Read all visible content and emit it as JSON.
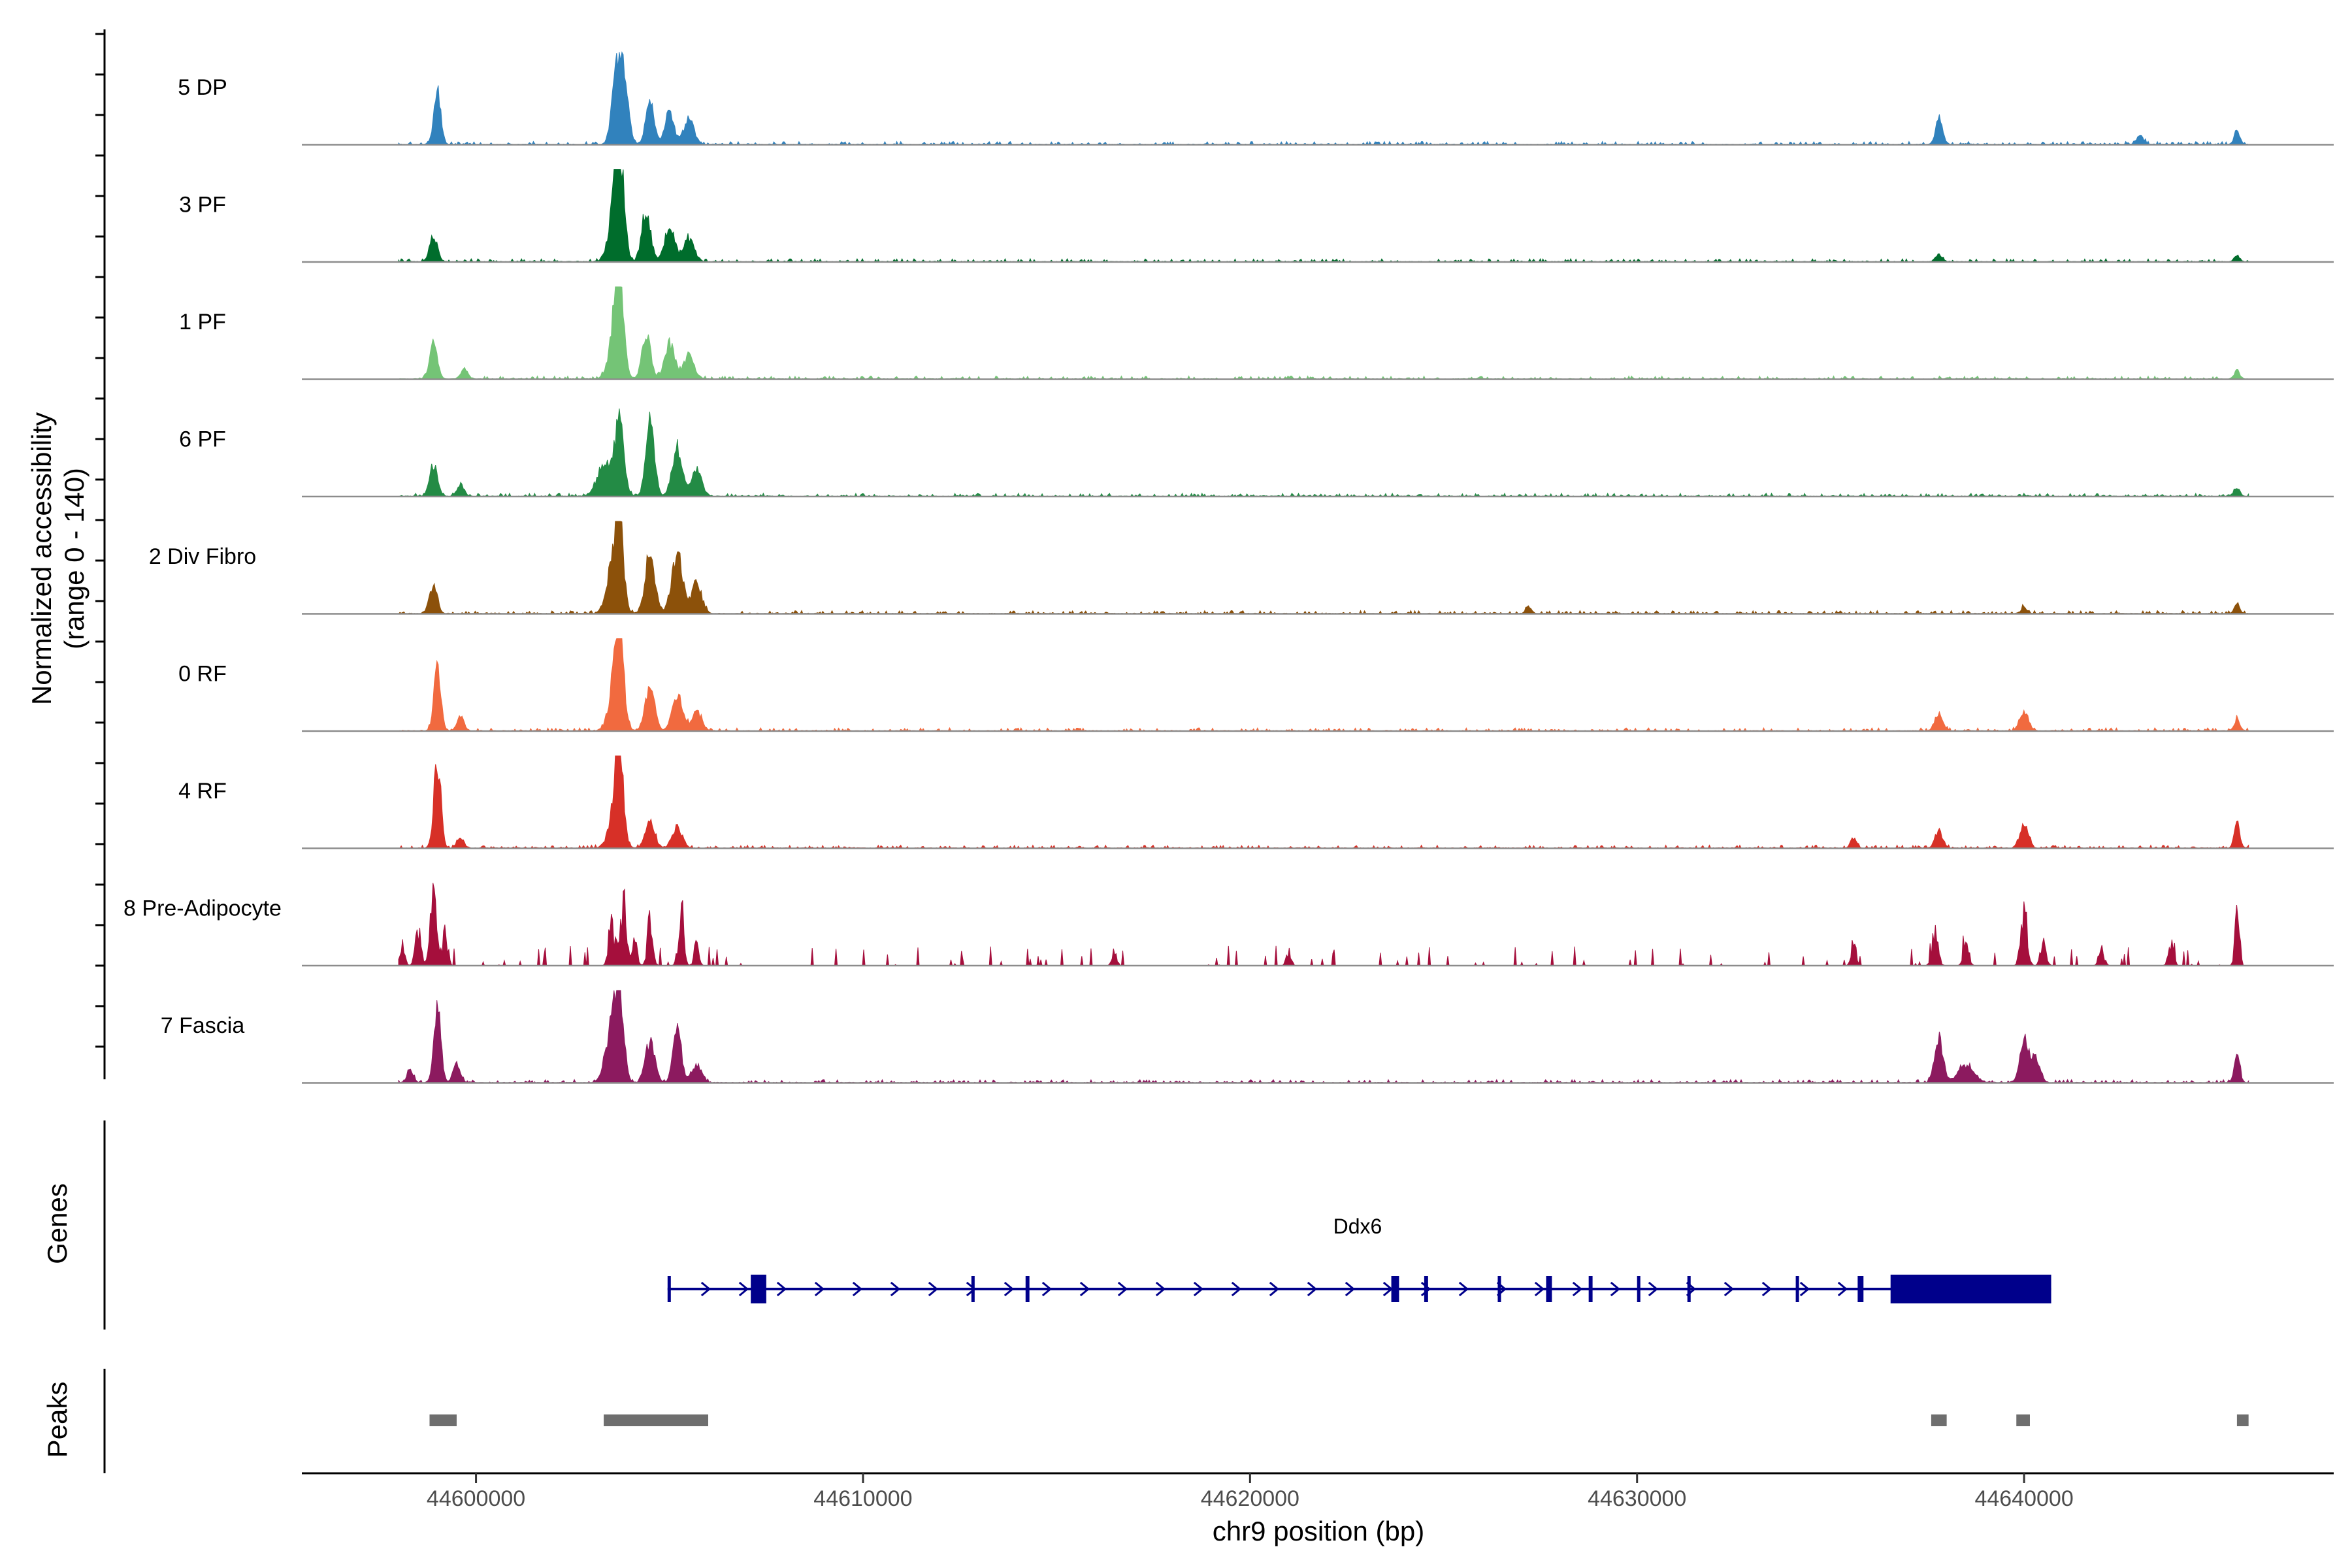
{
  "chart_data": {
    "type": "area",
    "title": "",
    "ylabel": "Normalized accessibility",
    "ylabel_sub": "(range 0 - 140)",
    "yrange": [
      0,
      140
    ],
    "xlabel": "chr9 position (bp)",
    "xlim": [
      44595500,
      44648000
    ],
    "x_ticks": [
      44600000,
      44610000,
      44620000,
      44630000,
      44640000
    ],
    "x_tick_labels": [
      "44600000",
      "44610000",
      "44620000",
      "44630000",
      "44640000"
    ],
    "series": [
      {
        "name": "5 DP",
        "color": "#3182bd",
        "peaks": [
          [
            44599000,
            0.6,
            90
          ],
          [
            44603600,
            0.6,
            110
          ],
          [
            44603800,
            0.92,
            120
          ],
          [
            44604500,
            0.48,
            110
          ],
          [
            44605000,
            0.38,
            110
          ],
          [
            44605500,
            0.3,
            130
          ],
          [
            44637800,
            0.3,
            90
          ],
          [
            44643000,
            0.1,
            90
          ],
          [
            44645500,
            0.16,
            70
          ]
        ]
      },
      {
        "name": "3 PF",
        "color": "#006d2c",
        "peaks": [
          [
            44598900,
            0.3,
            100
          ],
          [
            44603700,
            1.0,
            110
          ],
          [
            44603600,
            0.6,
            160
          ],
          [
            44604400,
            0.62,
            110
          ],
          [
            44605000,
            0.4,
            130
          ],
          [
            44605500,
            0.26,
            140
          ],
          [
            44637800,
            0.08,
            90
          ],
          [
            44645500,
            0.08,
            70
          ]
        ]
      },
      {
        "name": "1 PF",
        "color": "#74c476",
        "peaks": [
          [
            44598900,
            0.4,
            100
          ],
          [
            44599700,
            0.12,
            90
          ],
          [
            44603700,
            0.95,
            110
          ],
          [
            44603600,
            0.5,
            160
          ],
          [
            44604400,
            0.52,
            110
          ],
          [
            44605000,
            0.4,
            130
          ],
          [
            44605500,
            0.26,
            140
          ],
          [
            44645500,
            0.1,
            70
          ]
        ]
      },
      {
        "name": "6 PF",
        "color": "#238b45",
        "peaks": [
          [
            44598900,
            0.38,
            100
          ],
          [
            44599600,
            0.14,
            90
          ],
          [
            44603700,
            0.85,
            120
          ],
          [
            44603300,
            0.35,
            180
          ],
          [
            44604500,
            0.85,
            110
          ],
          [
            44605200,
            0.58,
            130
          ],
          [
            44605700,
            0.3,
            130
          ],
          [
            44645500,
            0.1,
            70
          ]
        ]
      },
      {
        "name": "2 Div Fibro",
        "color": "#8c510a",
        "peaks": [
          [
            44598900,
            0.32,
            100
          ],
          [
            44603700,
            1.0,
            110
          ],
          [
            44603500,
            0.5,
            140
          ],
          [
            44604500,
            0.68,
            130
          ],
          [
            44605200,
            0.68,
            140
          ],
          [
            44605700,
            0.34,
            130
          ],
          [
            44627200,
            0.08,
            70
          ],
          [
            44640000,
            0.08,
            70
          ],
          [
            44645500,
            0.1,
            70
          ]
        ]
      },
      {
        "name": "0 RF",
        "color": "#f16a3f",
        "peaks": [
          [
            44599000,
            0.7,
            90
          ],
          [
            44599600,
            0.16,
            90
          ],
          [
            44603700,
            0.92,
            110
          ],
          [
            44603600,
            0.5,
            160
          ],
          [
            44604500,
            0.55,
            120
          ],
          [
            44605200,
            0.42,
            130
          ],
          [
            44605700,
            0.22,
            130
          ],
          [
            44637800,
            0.2,
            100
          ],
          [
            44640000,
            0.22,
            110
          ],
          [
            44645500,
            0.14,
            70
          ]
        ]
      },
      {
        "name": "4 RF",
        "color": "#d73027",
        "peaks": [
          [
            44599000,
            1.0,
            90
          ],
          [
            44599600,
            0.12,
            90
          ],
          [
            44603700,
            1.0,
            100
          ],
          [
            44603600,
            0.4,
            160
          ],
          [
            44604500,
            0.3,
            120
          ],
          [
            44605200,
            0.24,
            130
          ],
          [
            44635600,
            0.12,
            80
          ],
          [
            44637800,
            0.2,
            100
          ],
          [
            44640000,
            0.28,
            110
          ],
          [
            44645500,
            0.3,
            70
          ]
        ]
      },
      {
        "name": "8 Pre-Adipocyte",
        "color": "#a50f3c",
        "peaks": [
          [
            44598900,
            0.9,
            80
          ],
          [
            44598500,
            0.5,
            70
          ],
          [
            44599200,
            0.4,
            70
          ],
          [
            44598100,
            0.25,
            60
          ],
          [
            44603800,
            0.78,
            80
          ],
          [
            44603500,
            0.55,
            70
          ],
          [
            44604500,
            0.6,
            70
          ],
          [
            44605300,
            0.7,
            70
          ],
          [
            44605700,
            0.3,
            60
          ],
          [
            44604100,
            0.3,
            70
          ],
          [
            44635600,
            0.38,
            60
          ],
          [
            44637700,
            0.4,
            80
          ],
          [
            44638500,
            0.3,
            70
          ],
          [
            44640000,
            0.75,
            80
          ],
          [
            44640500,
            0.3,
            70
          ],
          [
            44642000,
            0.22,
            70
          ],
          [
            44643800,
            0.25,
            70
          ],
          [
            44645500,
            1.0,
            50
          ],
          [
            44621000,
            0.18,
            60
          ],
          [
            44616500,
            0.18,
            60
          ]
        ]
      },
      {
        "name": "7 Fascia",
        "color": "#8c1a5f",
        "peaks": [
          [
            44599000,
            0.9,
            90
          ],
          [
            44599500,
            0.22,
            90
          ],
          [
            44598300,
            0.15,
            80
          ],
          [
            44603700,
            1.0,
            110
          ],
          [
            44603500,
            0.6,
            160
          ],
          [
            44604500,
            0.48,
            120
          ],
          [
            44605200,
            0.6,
            110
          ],
          [
            44605700,
            0.2,
            120
          ],
          [
            44637800,
            0.52,
            110
          ],
          [
            44638500,
            0.2,
            200
          ],
          [
            44640000,
            0.5,
            110
          ],
          [
            44640300,
            0.28,
            110
          ],
          [
            44645500,
            0.36,
            70
          ]
        ]
      }
    ],
    "gene": {
      "name": "Ddx6",
      "color": "#00008b",
      "start": 44604950,
      "end": 44640700,
      "exons": [
        [
          44604950,
          44605000
        ],
        [
          44607100,
          44607500
        ],
        [
          44612800,
          44612850
        ],
        [
          44614200,
          44614300
        ],
        [
          44623650,
          44623850
        ],
        [
          44624500,
          44624600
        ],
        [
          44626400,
          44626450
        ],
        [
          44627650,
          44627800
        ],
        [
          44628750,
          44628850
        ],
        [
          44630000,
          44630050
        ],
        [
          44631300,
          44631350
        ],
        [
          44634100,
          44634150
        ],
        [
          44635700,
          44635850
        ],
        [
          44636550,
          44640700
        ]
      ]
    },
    "peaks": {
      "color": "#6e6e6e",
      "regions": [
        [
          44598800,
          44599500
        ],
        [
          44603300,
          44606000
        ],
        [
          44637600,
          44638000
        ],
        [
          44639800,
          44640150
        ],
        [
          44645500,
          44645800
        ]
      ]
    }
  },
  "panels": {
    "genes_label": "Genes",
    "peaks_label": "Peaks"
  }
}
